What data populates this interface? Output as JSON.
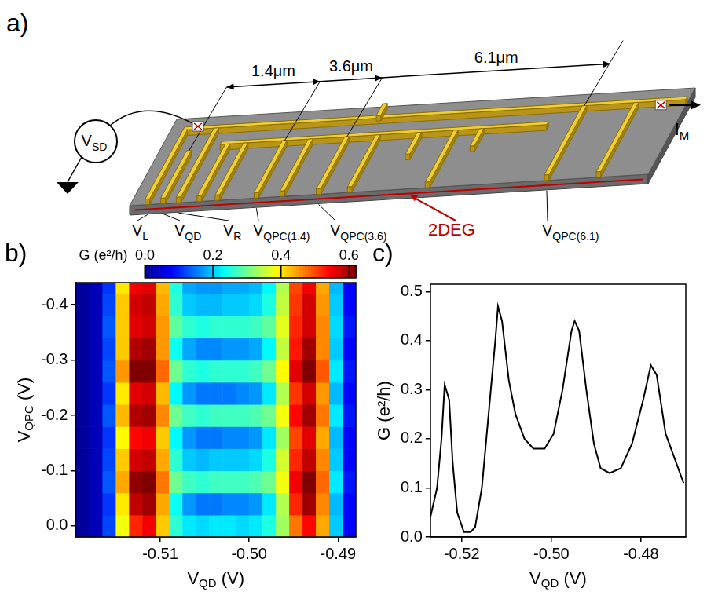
{
  "diagram": {
    "panel": "a)",
    "dimensions": [
      "1.4μm",
      "3.6μm",
      "6.1μm"
    ],
    "source": {
      "base": "V",
      "sub": "SD"
    },
    "current": {
      "base": "I",
      "sub": "M"
    },
    "gates": [
      {
        "base": "V",
        "sub": "L"
      },
      {
        "base": "V",
        "sub": "QD"
      },
      {
        "base": "V",
        "sub": "R"
      },
      {
        "base": "V",
        "sub": "QPC(1.4)"
      },
      {
        "base": "V",
        "sub": "QPC(3.6)"
      },
      {
        "base": "V",
        "sub": "QPC(6.1)"
      }
    ],
    "layer": "2DEG"
  },
  "chart_data": [
    {
      "panel": "b)",
      "type": "heatmap",
      "x_label": {
        "base": "V",
        "sub": "QD",
        "unit": "(V)"
      },
      "y_label": {
        "base": "V",
        "sub": "QPC",
        "unit": "(V)"
      },
      "xlim": [
        -0.5195,
        -0.488
      ],
      "xticks": [
        -0.51,
        {
          "value": -0.5,
          "label": "-0.50"
        },
        -0.49
      ],
      "ylim": [
        0.02,
        -0.44
      ],
      "yticks": [
        {
          "value": 0,
          "label": "0.0"
        },
        -0.1,
        -0.2,
        -0.3,
        -0.4
      ],
      "x": [
        -0.51875,
        -0.51725,
        -0.51575,
        -0.51425,
        -0.51275,
        -0.51125,
        -0.50975,
        -0.50825,
        -0.50675,
        -0.50525,
        -0.50375,
        -0.50225,
        -0.50075,
        -0.49925,
        -0.49775,
        -0.49625,
        -0.49475,
        -0.49325,
        -0.49175,
        -0.49025,
        -0.48875
      ],
      "y": [
        0,
        -0.04,
        -0.08,
        -0.12,
        -0.16,
        -0.2,
        -0.24,
        -0.28,
        -0.32,
        -0.36,
        -0.4,
        -0.44
      ],
      "z": [
        [
          0.01,
          0.03,
          0.12,
          0.38,
          0.52,
          0.55,
          0.42,
          0.26,
          0.22,
          0.21,
          0.22,
          0.22,
          0.21,
          0.22,
          0.25,
          0.33,
          0.47,
          0.54,
          0.44,
          0.2,
          0.08
        ],
        [
          0.01,
          0.03,
          0.11,
          0.4,
          0.58,
          0.6,
          0.44,
          0.24,
          0.17,
          0.15,
          0.15,
          0.16,
          0.16,
          0.17,
          0.22,
          0.34,
          0.52,
          0.6,
          0.46,
          0.19,
          0.08
        ],
        [
          0.01,
          0.03,
          0.13,
          0.44,
          0.61,
          0.62,
          0.47,
          0.3,
          0.27,
          0.26,
          0.27,
          0.27,
          0.27,
          0.28,
          0.3,
          0.38,
          0.55,
          0.62,
          0.48,
          0.22,
          0.09
        ],
        [
          0.01,
          0.03,
          0.12,
          0.42,
          0.57,
          0.58,
          0.44,
          0.26,
          0.2,
          0.19,
          0.2,
          0.2,
          0.2,
          0.21,
          0.25,
          0.36,
          0.52,
          0.58,
          0.46,
          0.2,
          0.08
        ],
        [
          0.01,
          0.03,
          0.11,
          0.39,
          0.54,
          0.55,
          0.42,
          0.23,
          0.17,
          0.15,
          0.15,
          0.16,
          0.16,
          0.17,
          0.22,
          0.33,
          0.5,
          0.56,
          0.44,
          0.19,
          0.08
        ],
        [
          0.01,
          0.03,
          0.13,
          0.43,
          0.59,
          0.6,
          0.46,
          0.3,
          0.27,
          0.26,
          0.27,
          0.27,
          0.27,
          0.28,
          0.3,
          0.38,
          0.54,
          0.6,
          0.47,
          0.22,
          0.09
        ],
        [
          0.01,
          0.03,
          0.11,
          0.4,
          0.56,
          0.57,
          0.43,
          0.23,
          0.17,
          0.15,
          0.15,
          0.15,
          0.16,
          0.17,
          0.22,
          0.34,
          0.51,
          0.57,
          0.45,
          0.19,
          0.08
        ],
        [
          0.01,
          0.03,
          0.13,
          0.45,
          0.62,
          0.63,
          0.48,
          0.3,
          0.26,
          0.25,
          0.26,
          0.26,
          0.26,
          0.27,
          0.3,
          0.39,
          0.56,
          0.63,
          0.49,
          0.22,
          0.09
        ],
        [
          0.01,
          0.03,
          0.12,
          0.42,
          0.59,
          0.6,
          0.45,
          0.24,
          0.18,
          0.16,
          0.16,
          0.17,
          0.17,
          0.18,
          0.23,
          0.35,
          0.53,
          0.6,
          0.46,
          0.2,
          0.08
        ],
        [
          0.01,
          0.03,
          0.13,
          0.42,
          0.56,
          0.57,
          0.45,
          0.29,
          0.26,
          0.25,
          0.26,
          0.26,
          0.26,
          0.27,
          0.29,
          0.37,
          0.52,
          0.57,
          0.46,
          0.21,
          0.09
        ],
        [
          0.01,
          0.03,
          0.12,
          0.42,
          0.57,
          0.58,
          0.44,
          0.26,
          0.2,
          0.19,
          0.19,
          0.2,
          0.2,
          0.21,
          0.25,
          0.35,
          0.51,
          0.57,
          0.45,
          0.2,
          0.08
        ],
        [
          0.01,
          0.03,
          0.11,
          0.4,
          0.55,
          0.56,
          0.43,
          0.25,
          0.18,
          0.17,
          0.17,
          0.18,
          0.18,
          0.19,
          0.23,
          0.34,
          0.5,
          0.55,
          0.44,
          0.19,
          0.08
        ]
      ],
      "colorbar": {
        "label": "G (e²/h)",
        "range": [
          0,
          0.62
        ],
        "ticks": [
          {
            "value": 0,
            "label": "0.0"
          },
          0.2,
          0.4,
          0.6
        ]
      }
    },
    {
      "panel": "c)",
      "type": "line",
      "color": "#000000",
      "x_label": {
        "base": "V",
        "sub": "QD",
        "unit": "(V)"
      },
      "y_label": "G (e²/h)",
      "xlim": [
        -0.527,
        -0.47
      ],
      "xticks": [
        -0.52,
        {
          "value": -0.5,
          "label": "-0.50"
        },
        -0.48
      ],
      "ylim": [
        0,
        0.515
      ],
      "yticks": [
        {
          "value": 0,
          "label": "0.0"
        },
        0.1,
        0.2,
        0.3,
        0.4,
        0.5
      ],
      "x": [
        -0.527,
        -0.5255,
        -0.5245,
        -0.5238,
        -0.5228,
        -0.522,
        -0.521,
        -0.5195,
        -0.518,
        -0.517,
        -0.5155,
        -0.514,
        -0.5125,
        -0.5119,
        -0.511,
        -0.5095,
        -0.508,
        -0.506,
        -0.504,
        -0.5015,
        -0.4995,
        -0.4975,
        -0.4955,
        -0.4948,
        -0.4938,
        -0.4922,
        -0.4905,
        -0.489,
        -0.487,
        -0.4845,
        -0.482,
        -0.4795,
        -0.4778,
        -0.4765,
        -0.4745,
        -0.4725,
        -0.4705
      ],
      "values": [
        0.04,
        0.1,
        0.2,
        0.31,
        0.28,
        0.15,
        0.05,
        0.01,
        0.01,
        0.02,
        0.1,
        0.25,
        0.4,
        0.47,
        0.44,
        0.32,
        0.25,
        0.2,
        0.18,
        0.18,
        0.21,
        0.3,
        0.42,
        0.44,
        0.42,
        0.3,
        0.19,
        0.14,
        0.13,
        0.14,
        0.19,
        0.28,
        0.35,
        0.33,
        0.21,
        0.16,
        0.11
      ]
    }
  ]
}
